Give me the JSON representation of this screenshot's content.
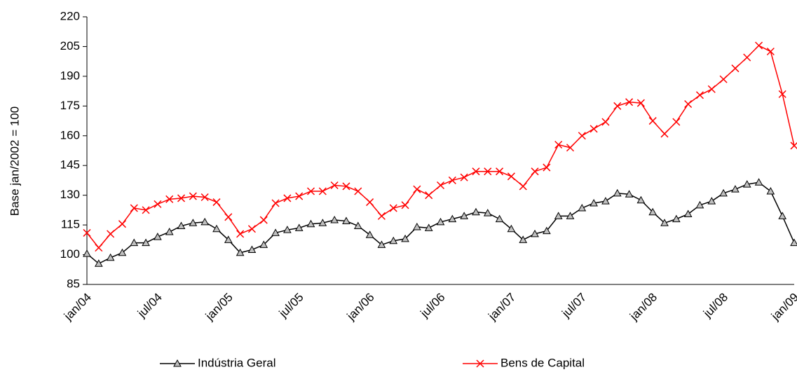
{
  "chart_data": {
    "type": "line",
    "y_label": "Base jan/2002 = 100",
    "categories": [
      "jan/04",
      null,
      null,
      null,
      null,
      null,
      "jul/04",
      null,
      null,
      null,
      null,
      null,
      "jan/05",
      null,
      null,
      null,
      null,
      null,
      "jul/05",
      null,
      null,
      null,
      null,
      null,
      "jan/06",
      null,
      null,
      null,
      null,
      null,
      "jul/06",
      null,
      null,
      null,
      null,
      null,
      "jan/07",
      null,
      null,
      null,
      null,
      null,
      "jul/07",
      null,
      null,
      null,
      null,
      null,
      "jan/08",
      null,
      null,
      null,
      null,
      null,
      "jul/08",
      null,
      null,
      null,
      null,
      null,
      "jan/09"
    ],
    "series": [
      {
        "name": "Indústria Geral",
        "color": "#000000",
        "marker": "triangle",
        "values": [
          100.5,
          95.5,
          98.5,
          101,
          106,
          106,
          109,
          111.5,
          114.5,
          116,
          116.5,
          113,
          107.5,
          101,
          102.5,
          105,
          111,
          112.5,
          113.5,
          115.5,
          116,
          117.5,
          117,
          114.5,
          110,
          105,
          107,
          108,
          114,
          113.5,
          116.5,
          118,
          119.5,
          121.5,
          121,
          118,
          113,
          107.5,
          110.5,
          112,
          119.5,
          119.5,
          123.5,
          126,
          127,
          131,
          130.5,
          127.5,
          121.5,
          116,
          118,
          120.5,
          125,
          127,
          131,
          133,
          135.5,
          136.5,
          132,
          119.5,
          106
        ]
      },
      {
        "name": "Bens de Capital",
        "color": "#ff0000",
        "marker": "x",
        "values": [
          111,
          103.5,
          110.5,
          115.5,
          123.5,
          122.5,
          125.5,
          128,
          128.5,
          129.5,
          129,
          126.5,
          119,
          110.5,
          113,
          117.5,
          126,
          128.5,
          129.5,
          132,
          132,
          135,
          134.5,
          132,
          126.5,
          119.5,
          123.5,
          125,
          133,
          130,
          135,
          137.5,
          139,
          142,
          142,
          142,
          139.5,
          134.5,
          142,
          144,
          155.5,
          154,
          160,
          163.5,
          167,
          175,
          177,
          176.5,
          167.5,
          161,
          167,
          176,
          180.5,
          183.5,
          188.5,
          194,
          199.5,
          205.5,
          202.5,
          181,
          155
        ]
      }
    ],
    "ylim": [
      85,
      220
    ],
    "yticks": [
      85,
      100,
      115,
      130,
      145,
      160,
      175,
      190,
      205,
      220
    ],
    "grid": false,
    "legend": "bottom"
  }
}
